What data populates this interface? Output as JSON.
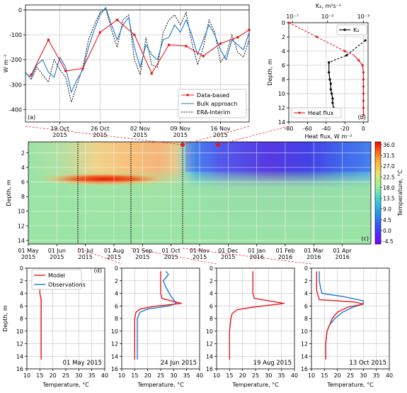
{
  "figure": {
    "panel_a": {
      "tag": "(a)",
      "ylabel": "W m⁻²",
      "yticks": [
        0,
        -100,
        -200,
        -300,
        -400
      ],
      "ylim": [
        -450,
        20
      ],
      "xticks": [
        {
          "line1": "19 Oct",
          "line2": "2015",
          "day": 19
        },
        {
          "line1": "26 Oct",
          "line2": "2015",
          "day": 26
        },
        {
          "line1": "02 Nov",
          "line2": "2015",
          "day": 33
        },
        {
          "line1": "09 Nov",
          "line2": "2015",
          "day": 40
        },
        {
          "line1": "16 Nov",
          "line2": "2015",
          "day": 47
        }
      ],
      "xlim_day": [
        13,
        52
      ],
      "legend": [
        "Data-based",
        "Bulk approach",
        "ERA-Interim"
      ]
    },
    "panel_b": {
      "tag": "(b)",
      "top_label": "K₂, m²s⁻¹",
      "top_ticks": [
        "10⁻⁷",
        "10⁻⁵",
        "10⁻³"
      ],
      "xlabel": "Heat flux, W m⁻²",
      "xticks": [
        -80,
        -60,
        -40,
        -20,
        0
      ],
      "xlim": [
        -80,
        5
      ],
      "ylabel": "Depth, m",
      "yticks": [
        0,
        2,
        4,
        6,
        8,
        10,
        12,
        14
      ],
      "legend_kz": "K₂",
      "legend_hf": "Heat flux"
    },
    "panel_c": {
      "tag": "(c)",
      "ylabel": "Depth, m",
      "yticks": [
        2,
        4,
        6,
        8,
        10,
        12,
        14
      ],
      "colorbar_label": "Temperature, °C",
      "colorbar_ticks": [
        "36.0",
        "31.5",
        "27.0",
        "22.5",
        "18.0",
        "13.5",
        "9.0",
        "4.5",
        "0.0",
        "-4.5"
      ],
      "xticks": [
        {
          "line1": "01 May",
          "line2": "2015"
        },
        {
          "line1": "01 Jun",
          "line2": "2015"
        },
        {
          "line1": "01 Jul",
          "line2": "2015"
        },
        {
          "line1": "01 Aug",
          "line2": "2015"
        },
        {
          "line1": "01 Sep",
          "line2": "2015"
        },
        {
          "line1": "01 Oct",
          "line2": "2015"
        },
        {
          "line1": "01 Nov",
          "line2": "2015"
        },
        {
          "line1": "01 Dec",
          "line2": "2015"
        },
        {
          "line1": "01 Jan",
          "line2": "2016"
        },
        {
          "line1": "01 Feb",
          "line2": "2016"
        },
        {
          "line1": "01 Mar",
          "line2": "2016"
        },
        {
          "line1": "01 Apr",
          "line2": "2016"
        }
      ]
    },
    "panel_d": {
      "tag": "(d)",
      "ylabel": "Depth, m",
      "xlabel": "Temperature, °C",
      "xticks": [
        10,
        15,
        20,
        25,
        30,
        35,
        40
      ],
      "yticks": [
        0,
        2,
        4,
        6,
        8,
        10,
        12,
        14,
        16
      ],
      "legend_model": "Model",
      "legend_obs": "Observations",
      "dates": [
        "01 May 2015",
        "24 Jun 2015",
        "19 Aug 2015",
        "13 Oct 2015"
      ]
    }
  },
  "chart_data": [
    {
      "type": "line",
      "title": "",
      "ylabel": "W m⁻²",
      "x_unit": "days since 01 Oct 2015 (axis ticks 19 Oct–16 Nov 2015)",
      "ylim": [
        -450,
        20
      ],
      "series": [
        {
          "name": "Data-based",
          "color": "#e31a1c",
          "x": [
            14,
            17,
            20,
            23,
            26,
            29,
            32,
            35,
            38,
            41,
            44,
            47,
            50,
            52
          ],
          "y": [
            -260,
            -120,
            -245,
            -235,
            -90,
            -40,
            -100,
            -255,
            -140,
            -145,
            -185,
            -135,
            -110,
            -80
          ]
        },
        {
          "name": "Bulk approach",
          "color": "#1f78d0",
          "x": [
            13,
            14,
            15,
            16,
            17,
            18,
            19,
            20,
            21,
            22,
            23,
            24,
            25,
            26,
            27,
            28,
            29,
            30,
            31,
            32,
            33,
            34,
            35,
            36,
            37,
            38,
            39,
            40,
            41,
            42,
            43,
            44,
            45,
            46,
            47,
            48,
            49,
            50,
            51,
            52
          ],
          "y": [
            -255,
            -270,
            -220,
            -200,
            -250,
            -270,
            -190,
            -230,
            -330,
            -280,
            -240,
            -150,
            -80,
            -20,
            10,
            -60,
            -120,
            -60,
            -30,
            -150,
            -230,
            -140,
            -180,
            -200,
            -120,
            -110,
            -60,
            -90,
            -40,
            -100,
            -180,
            -120,
            -60,
            -100,
            -160,
            -200,
            -120,
            -140,
            -160,
            -90
          ]
        },
        {
          "name": "ERA-Interim",
          "color": "#111111",
          "x": [
            13,
            14,
            15,
            16,
            17,
            18,
            19,
            20,
            21,
            22,
            23,
            24,
            25,
            26,
            27,
            28,
            29,
            30,
            31,
            32,
            33,
            34,
            35,
            36,
            37,
            38,
            39,
            40,
            41,
            42,
            43,
            44,
            45,
            46,
            47,
            48,
            49,
            50,
            51,
            52
          ],
          "y": [
            -250,
            -280,
            -230,
            -260,
            -290,
            -200,
            -240,
            -270,
            -370,
            -300,
            -230,
            -120,
            -60,
            -10,
            5,
            -80,
            -150,
            -40,
            -20,
            -200,
            -260,
            -110,
            -220,
            -230,
            -90,
            -40,
            -20,
            -60,
            -10,
            -130,
            -220,
            -150,
            -40,
            -90,
            -210,
            -180,
            -100,
            -170,
            -190,
            -120
          ]
        }
      ]
    },
    {
      "type": "line",
      "title": "",
      "xlabel": "Heat flux, W m⁻²",
      "ylabel": "Depth, m",
      "xlim": [
        -80,
        5
      ],
      "ylim": [
        14,
        0
      ],
      "series": [
        {
          "name": "Heat flux",
          "color": "#e31a1c",
          "x": [
            -80,
            -65,
            -50,
            -35,
            -20,
            -10,
            -5,
            -1,
            0,
            0,
            0,
            0,
            0,
            0,
            0
          ],
          "y": [
            0,
            1,
            2,
            3,
            4,
            4.6,
            5.3,
            6,
            7,
            8,
            9,
            10,
            11,
            12,
            13
          ]
        },
        {
          "name": "K₂",
          "color": "#000000",
          "x": [
            2,
            -18,
            -37,
            -37,
            -36,
            -35,
            -35,
            -34,
            -33,
            -33,
            -32,
            -32
          ],
          "y": [
            2.5,
            4.6,
            5.6,
            7,
            8,
            8.6,
            9.4,
            10,
            10.7,
            11.3,
            12,
            13
          ]
        }
      ]
    },
    {
      "type": "heatmap",
      "title": "",
      "ylabel": "Depth, m",
      "colorbar_label": "Temperature, °C",
      "x_months": [
        "May 2015",
        "Jun 2015",
        "Jul 2015",
        "Aug 2015",
        "Sep 2015",
        "Oct 2015",
        "Nov 2015",
        "Dec 2015",
        "Jan 2016",
        "Feb 2016",
        "Mar 2016",
        "Apr 2016"
      ],
      "ylim": [
        14.5,
        0.5
      ],
      "vlim": [
        -4.5,
        36
      ]
    },
    {
      "type": "line",
      "title": "",
      "xlabel": "Temperature, °C",
      "ylabel": "Depth, m",
      "xlim": [
        10,
        40
      ],
      "ylim": [
        16,
        0
      ],
      "profiles": [
        {
          "date": "01 May 2015",
          "series": [
            {
              "name": "Model",
              "color": "#e31a1c",
              "x": [
                15,
                15,
                15,
                15.5,
                15.5,
                15.5,
                15.5,
                15.5
              ],
              "y": [
                0.5,
                2,
                4,
                5,
                6,
                8,
                12,
                14.5
              ]
            }
          ]
        },
        {
          "date": "24 Jun 2015",
          "series": [
            {
              "name": "Model",
              "color": "#e31a1c",
              "x": [
                25,
                25,
                25,
                25.5,
                29,
                33,
                22,
                17,
                15.5,
                15,
                15,
                15,
                15
              ],
              "y": [
                0.5,
                2,
                4,
                4.8,
                5.2,
                5.6,
                6.1,
                6.5,
                7,
                8,
                10,
                12,
                14.5
              ]
            },
            {
              "name": "Observations",
              "color": "#1f78d0",
              "x": [
                27,
                28,
                26,
                27,
                29,
                31,
                28,
                20,
                17,
                16,
                16,
                16,
                16
              ],
              "y": [
                0.5,
                1,
                2,
                3,
                4.5,
                5.6,
                6,
                6.5,
                7,
                8,
                10,
                12,
                14.5
              ]
            }
          ]
        },
        {
          "date": "19 Aug 2015",
          "series": [
            {
              "name": "Model",
              "color": "#e31a1c",
              "x": [
                24,
                24,
                24,
                24.5,
                36,
                24,
                18,
                16,
                15.5,
                15,
                15,
                15
              ],
              "y": [
                0.5,
                2,
                4,
                4.8,
                5.6,
                6.2,
                6.6,
                7.2,
                8,
                10,
                12,
                14.5
              ]
            }
          ]
        },
        {
          "date": "13 Oct 2015",
          "series": [
            {
              "name": "Model",
              "color": "#e31a1c",
              "x": [
                12,
                12,
                12,
                13,
                20,
                27,
                30,
                24,
                20,
                18,
                17,
                16,
                15.5,
                15.5
              ],
              "y": [
                0.5,
                2,
                3.5,
                5,
                5.2,
                5.4,
                5.7,
                6.2,
                7,
                8,
                9,
                10,
                12,
                14.5
              ]
            },
            {
              "name": "Observations",
              "color": "#1f78d0",
              "x": [
                13,
                13,
                13.5,
                14,
                22,
                30,
                30,
                26,
                22,
                19,
                17,
                16,
                15.5,
                15.5
              ],
              "y": [
                0.5,
                2,
                3,
                4,
                4.5,
                5.2,
                5.7,
                6.2,
                7,
                8,
                9,
                10,
                12,
                14.5
              ]
            }
          ]
        }
      ]
    }
  ]
}
